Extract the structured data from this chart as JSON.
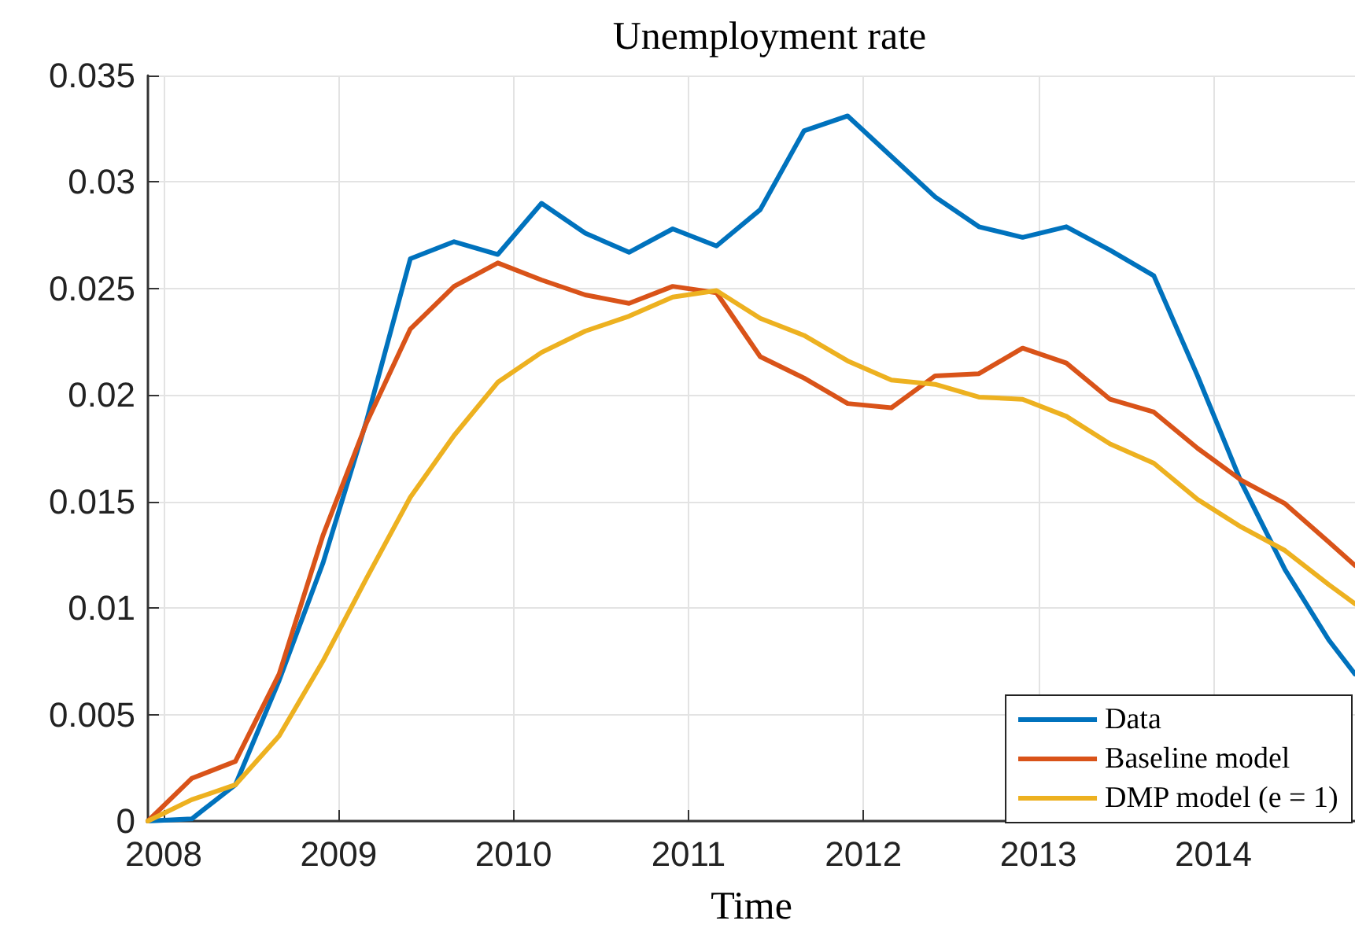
{
  "chart_data": {
    "type": "line",
    "title": "Unemployment rate",
    "xlabel": "Time",
    "x": [
      2007.91,
      2008.16,
      2008.41,
      2008.66,
      2008.91,
      2009.16,
      2009.41,
      2009.66,
      2009.91,
      2010.16,
      2010.41,
      2010.66,
      2010.91,
      2011.16,
      2011.41,
      2011.66,
      2011.91,
      2012.16,
      2012.41,
      2012.66,
      2012.91,
      2013.16,
      2013.41,
      2013.66,
      2013.91,
      2014.16,
      2014.41,
      2014.66,
      2014.81
    ],
    "series": [
      {
        "name": "Data",
        "color": "#0072bd",
        "values": [
          0,
          0.0001,
          0.0017,
          0.0066,
          0.0121,
          0.0188,
          0.0264,
          0.0272,
          0.0266,
          0.029,
          0.0276,
          0.0267,
          0.0278,
          0.027,
          0.0287,
          0.0324,
          0.0331,
          0.0312,
          0.0293,
          0.0279,
          0.0274,
          0.0279,
          0.0268,
          0.0256,
          0.0209,
          0.0159,
          0.0118,
          0.0085,
          0.0069
        ]
      },
      {
        "name": "Baseline model",
        "color": "#d95319",
        "values": [
          0,
          0.002,
          0.0028,
          0.0069,
          0.0134,
          0.0187,
          0.0231,
          0.0251,
          0.0262,
          0.0254,
          0.0247,
          0.0243,
          0.0251,
          0.0248,
          0.0218,
          0.0208,
          0.0196,
          0.0194,
          0.0209,
          0.021,
          0.0222,
          0.0215,
          0.0198,
          0.0192,
          0.0175,
          0.016,
          0.0149,
          0.0131,
          0.012
        ]
      },
      {
        "name": "DMP model (e = 1)",
        "color": "#edb120",
        "values": [
          0,
          0.001,
          0.0017,
          0.004,
          0.0075,
          0.0114,
          0.0152,
          0.0181,
          0.0206,
          0.022,
          0.023,
          0.0237,
          0.0246,
          0.0249,
          0.0236,
          0.0228,
          0.0216,
          0.0207,
          0.0205,
          0.0199,
          0.0198,
          0.019,
          0.0177,
          0.0168,
          0.0151,
          0.0138,
          0.0127,
          0.0111,
          0.0102
        ]
      }
    ],
    "xlim": [
      2007.91,
      2014.81
    ],
    "xticks": [
      2008,
      2009,
      2010,
      2011,
      2012,
      2013,
      2014
    ],
    "ylim": [
      0,
      0.035
    ],
    "yticks": [
      0,
      0.005,
      0.01,
      0.015,
      0.02,
      0.025,
      0.03,
      0.035
    ],
    "grid": true,
    "legend": "bottom right",
    "marker": "none",
    "line_style": "solid"
  }
}
